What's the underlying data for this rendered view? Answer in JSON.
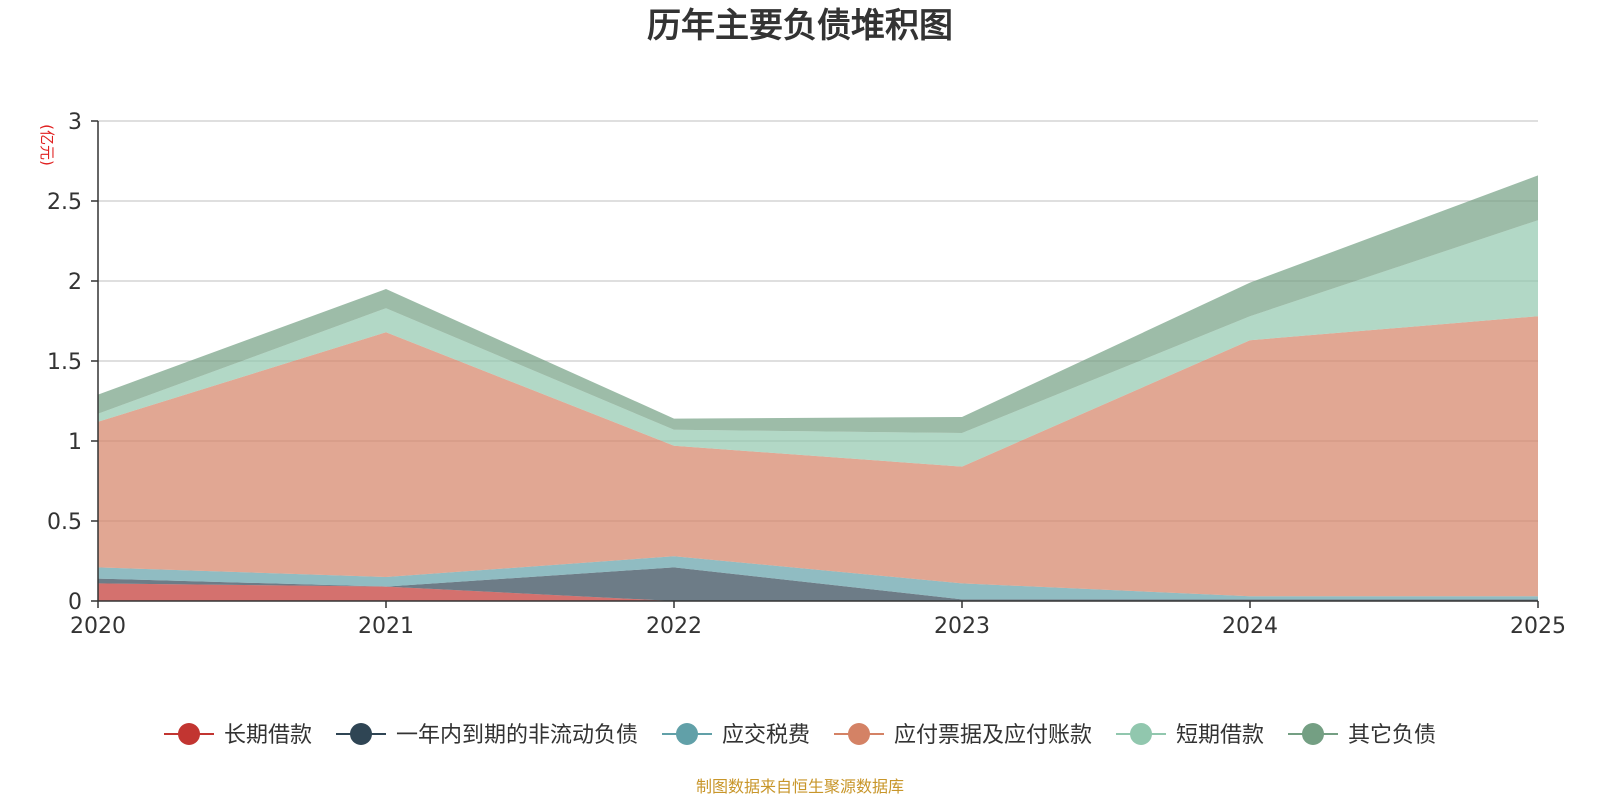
{
  "chart_data": {
    "type": "area",
    "stacked": true,
    "title": "历年主要负债堆积图",
    "unit_label": "(亿元)",
    "x": [
      "2020",
      "2021",
      "2022",
      "2023",
      "2024",
      "2025"
    ],
    "ylim": [
      0,
      3
    ],
    "yticks": [
      "0",
      "0.5",
      "1",
      "1.5",
      "2",
      "2.5",
      "3"
    ],
    "grid": true,
    "legend_position": "bottom",
    "series": [
      {
        "name": "长期借款",
        "color": "#c23531",
        "values": [
          0.11,
          0.09,
          0.0,
          0.0,
          0.0,
          0.0
        ]
      },
      {
        "name": "一年内到期的非流动负债",
        "color": "#2f4554",
        "values": [
          0.03,
          0.0,
          0.21,
          0.01,
          0.01,
          0.01
        ]
      },
      {
        "name": "应交税费",
        "color": "#61a0a8",
        "values": [
          0.07,
          0.06,
          0.07,
          0.1,
          0.02,
          0.02
        ]
      },
      {
        "name": "应付票据及应付账款",
        "color": "#d48265",
        "values": [
          0.91,
          1.53,
          0.69,
          0.73,
          1.6,
          1.75
        ]
      },
      {
        "name": "短期借款",
        "color": "#91c7ae",
        "values": [
          0.05,
          0.15,
          0.1,
          0.21,
          0.15,
          0.6
        ]
      },
      {
        "name": "其它负债",
        "color": "#749f83",
        "values": [
          0.12,
          0.12,
          0.07,
          0.1,
          0.21,
          0.28
        ]
      }
    ],
    "source_note": "制图数据来自恒生聚源数据库"
  }
}
